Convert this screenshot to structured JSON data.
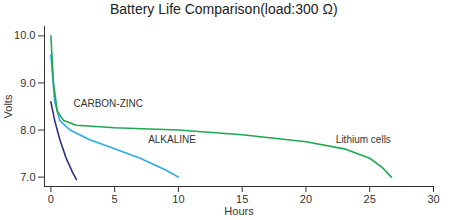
{
  "chart_data": {
    "type": "line",
    "title": "Battery Life Comparison(load:300 Ω)",
    "x_label": "Hours",
    "y_label": "Volts",
    "xlim": [
      -0.5,
      30
    ],
    "ylim": [
      6.8,
      10.2
    ],
    "xticks": [
      0,
      5,
      10,
      15,
      20,
      25,
      30
    ],
    "yticks": [
      {
        "value": 7,
        "label": "7.0"
      },
      {
        "value": 8,
        "label": "8.0"
      },
      {
        "value": 9,
        "label": "9.0"
      },
      {
        "value": 10,
        "label": "10.0"
      }
    ],
    "grid": false,
    "series": [
      {
        "name": "CARBON-ZINC",
        "color": "#2b2f7e",
        "x": [
          0,
          0.3,
          0.7,
          1.2,
          1.7,
          2.0
        ],
        "values": [
          8.6,
          8.2,
          7.8,
          7.4,
          7.1,
          6.95
        ]
      },
      {
        "name": "ALKALINE",
        "color": "#2aaae6",
        "x": [
          0,
          0.3,
          0.7,
          1.5,
          3,
          5,
          7,
          9,
          10
        ],
        "values": [
          9.6,
          8.6,
          8.2,
          8.0,
          7.8,
          7.6,
          7.4,
          7.15,
          7.0
        ]
      },
      {
        "name": "Lithium cells",
        "color": "#1fa84f",
        "x": [
          0,
          0.2,
          0.5,
          1,
          2,
          5,
          10,
          15,
          20,
          23,
          25,
          26,
          26.7
        ],
        "values": [
          10.0,
          9.0,
          8.4,
          8.2,
          8.1,
          8.05,
          8.0,
          7.9,
          7.75,
          7.6,
          7.4,
          7.2,
          7.0
        ]
      }
    ],
    "annotations": [
      {
        "text": "CARBON-ZINC",
        "x": 4.5,
        "y": 8.55
      },
      {
        "text": "ALKALINE",
        "x": 9.5,
        "y": 7.8
      },
      {
        "text": "Lithium cells",
        "x": 24.5,
        "y": 7.8
      }
    ]
  }
}
